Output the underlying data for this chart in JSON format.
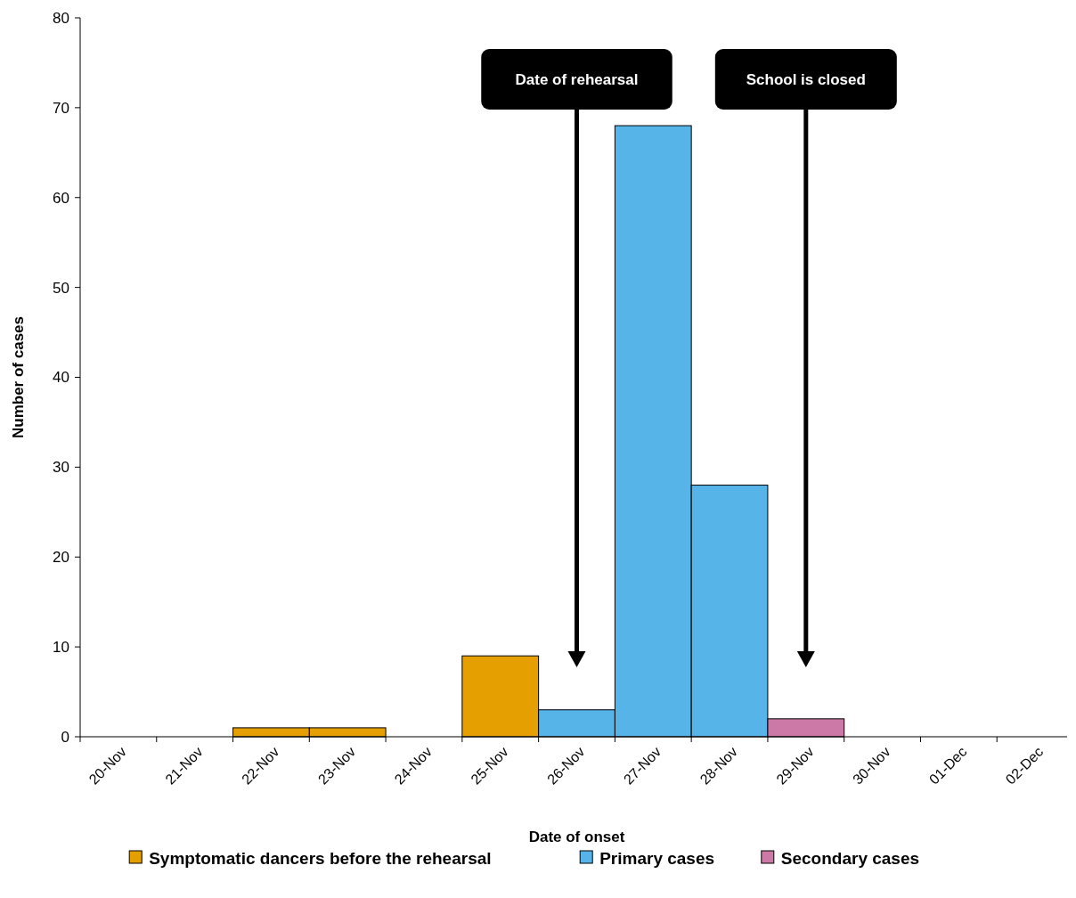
{
  "chart_data": {
    "type": "bar",
    "xlabel": "Date of onset",
    "ylabel": "Number of cases",
    "categories": [
      "20-Nov",
      "21-Nov",
      "22-Nov",
      "23-Nov",
      "24-Nov",
      "25-Nov",
      "26-Nov",
      "27-Nov",
      "28-Nov",
      "29-Nov",
      "30-Nov",
      "01-Dec",
      "02-Dec"
    ],
    "series": [
      {
        "name": "Symptomatic dancers before the rehearsal",
        "color": "#e69f00",
        "values": [
          0,
          0,
          1,
          1,
          0,
          9,
          0,
          0,
          0,
          0,
          0,
          0,
          0
        ]
      },
      {
        "name": "Primary cases",
        "color": "#56b4e9",
        "values": [
          0,
          0,
          0,
          0,
          0,
          0,
          3,
          68,
          28,
          0,
          0,
          0,
          0
        ]
      },
      {
        "name": "Secondary cases",
        "color": "#cc79a7",
        "values": [
          0,
          0,
          0,
          0,
          0,
          0,
          0,
          0,
          0,
          2,
          0,
          0,
          0
        ]
      }
    ],
    "ylim": [
      0,
      80
    ],
    "yticks": [
      0,
      10,
      20,
      30,
      40,
      50,
      60,
      70,
      80
    ],
    "grid": false,
    "legend": "bottom",
    "ref_lines": [
      {
        "axis": "x",
        "value": "26-Nov",
        "label": "Date of rehearsal"
      },
      {
        "axis": "x",
        "value": "29-Nov",
        "label": "School is closed"
      }
    ]
  }
}
